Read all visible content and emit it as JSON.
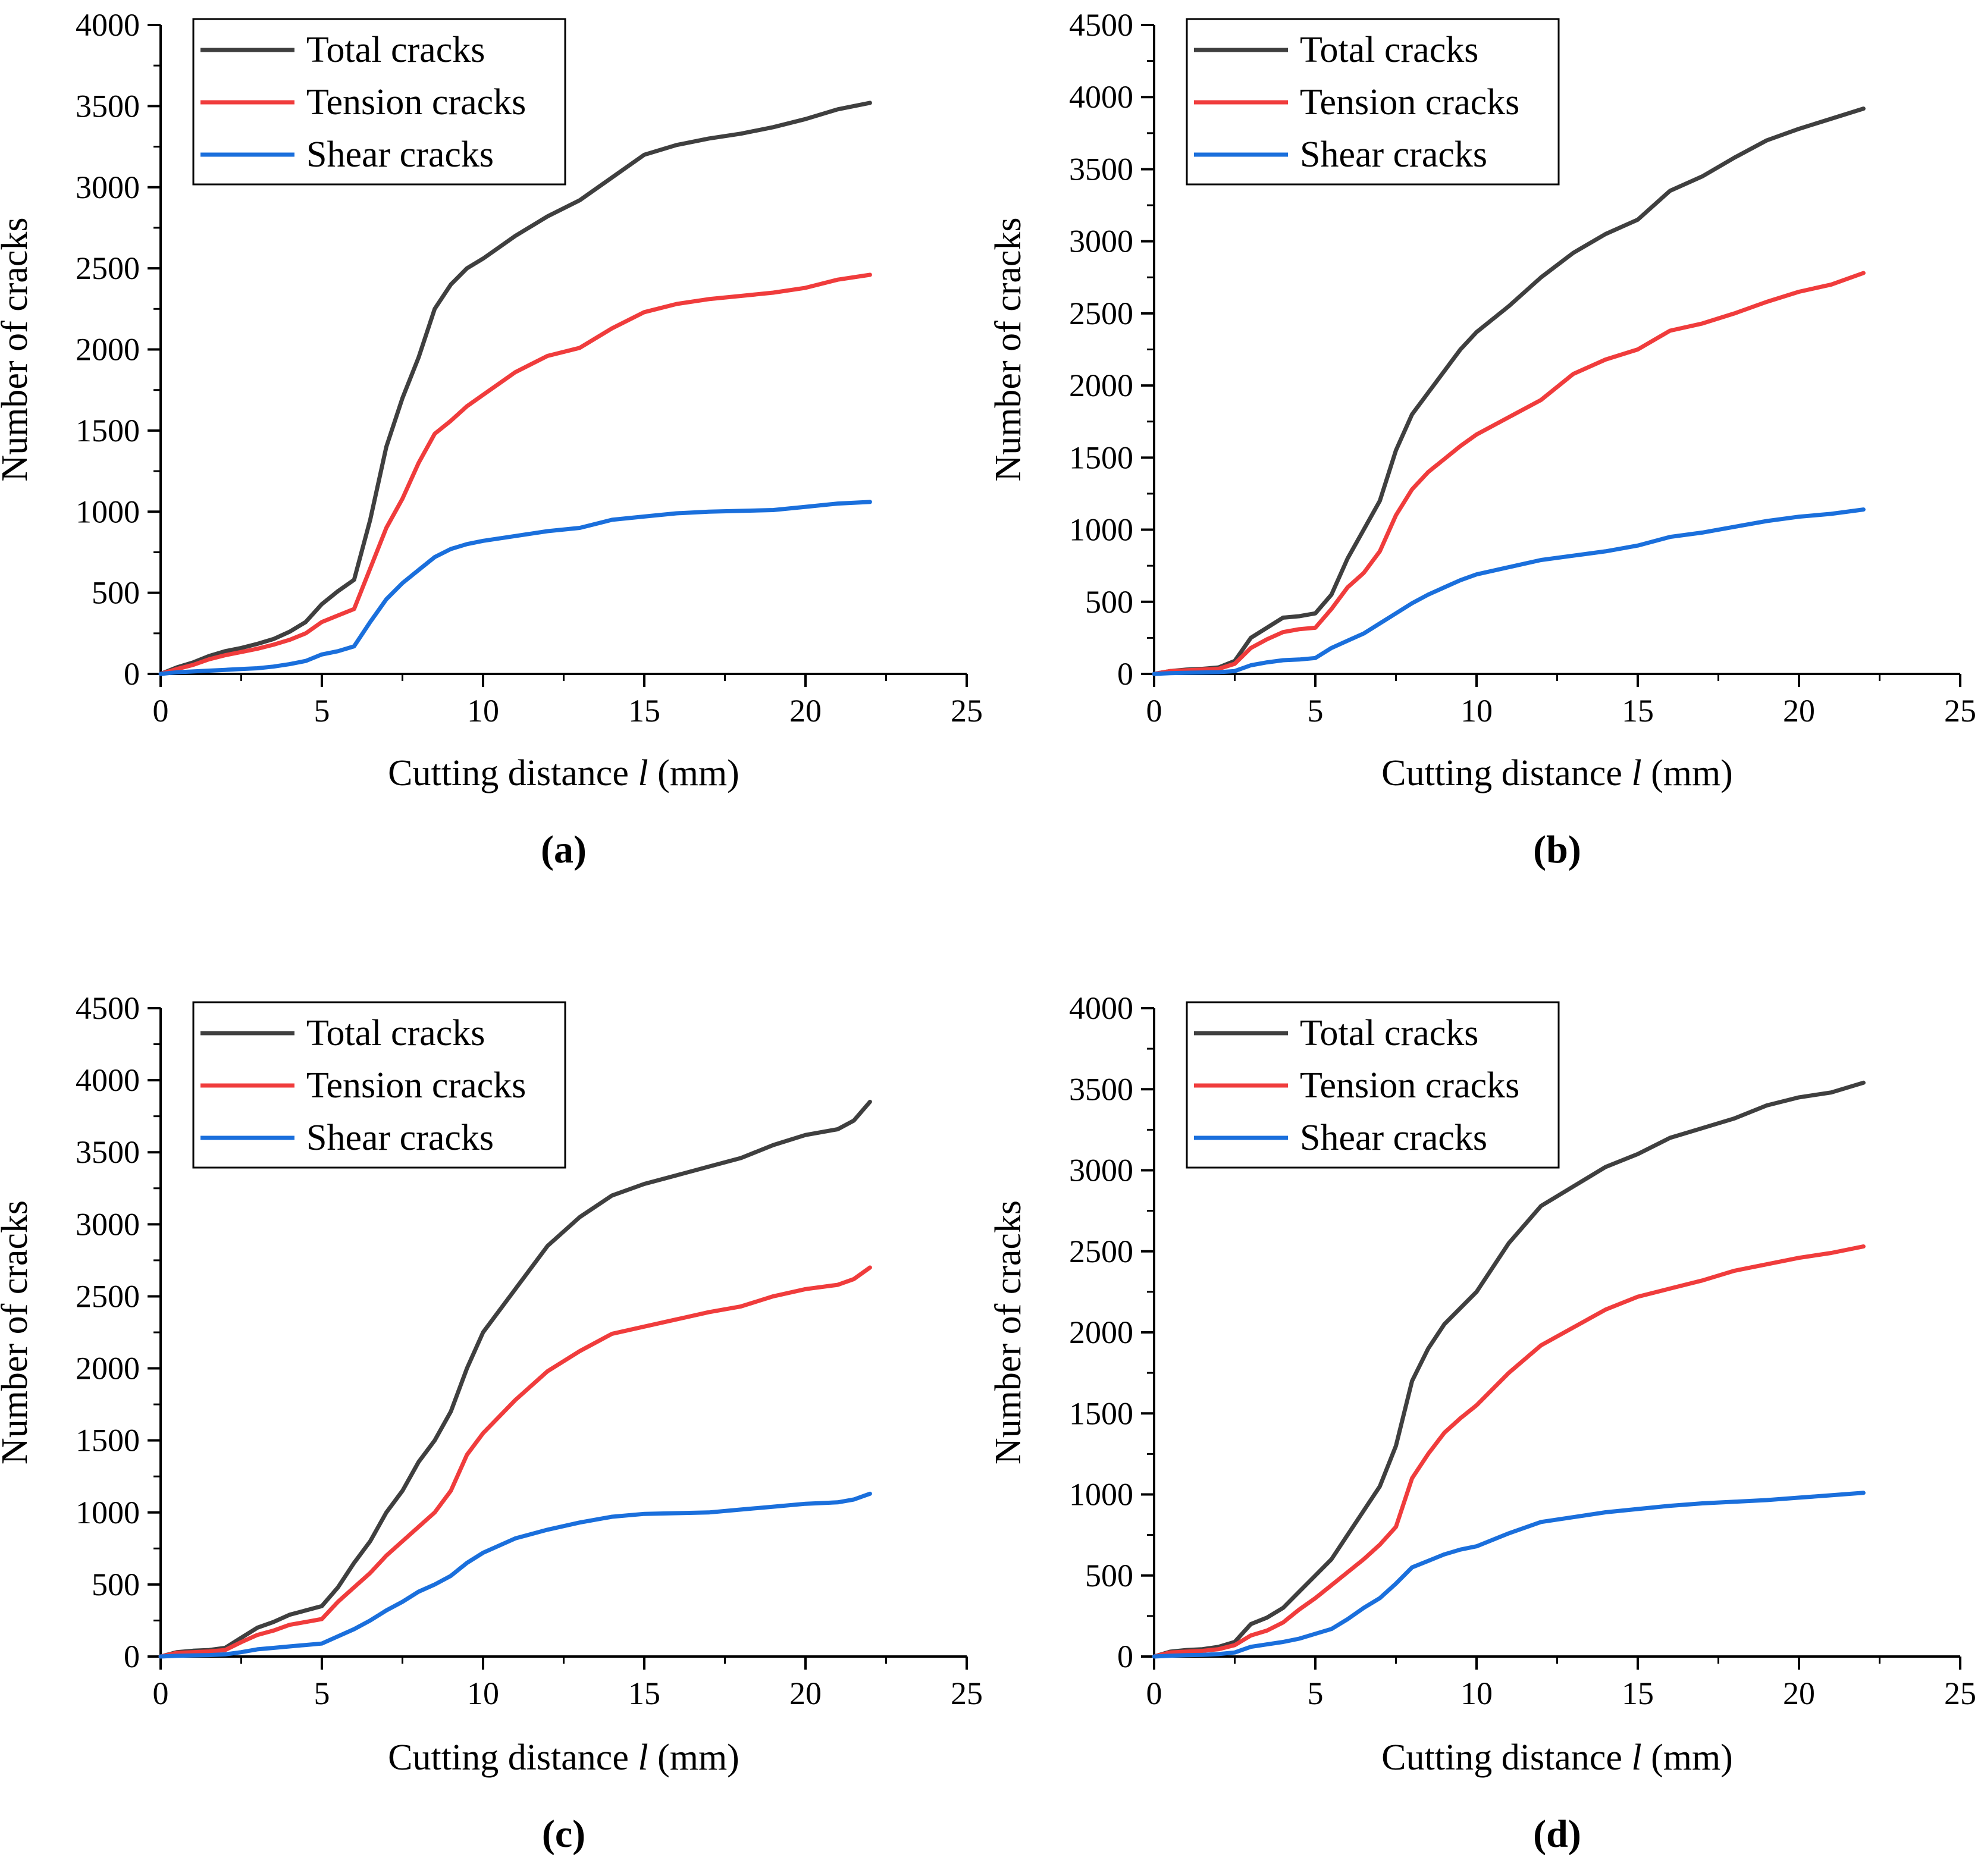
{
  "colors": {
    "total": "#3f3f3f",
    "tension": "#f03c3c",
    "shear": "#1a6fdc",
    "axis": "#000000"
  },
  "chart_data": [
    {
      "type": "line",
      "panel_label": "(a)",
      "xlabel_prefix": "Cutting distance ",
      "xlabel_var": "l",
      "xlabel_suffix": " (mm)",
      "ylabel": "Number of cracks",
      "xlim": [
        0,
        25
      ],
      "ylim": [
        0,
        4000
      ],
      "x_ticks": [
        0,
        5,
        10,
        15,
        20,
        25
      ],
      "y_ticks": [
        0,
        500,
        1000,
        1500,
        2000,
        2500,
        3000,
        3500,
        4000
      ],
      "legend_position": "top-left",
      "x": [
        0,
        0.5,
        1,
        1.5,
        2,
        2.5,
        3,
        3.5,
        4,
        4.5,
        5,
        5.5,
        6,
        6.5,
        7,
        7.5,
        8,
        8.5,
        9,
        9.5,
        10,
        11,
        12,
        13,
        14,
        15,
        16,
        17,
        18,
        19,
        20,
        21,
        22
      ],
      "series": [
        {
          "name": "Total cracks",
          "color_key": "total",
          "values": [
            0,
            40,
            70,
            110,
            140,
            160,
            185,
            215,
            260,
            320,
            430,
            510,
            580,
            950,
            1400,
            1700,
            1950,
            2250,
            2400,
            2500,
            2560,
            2700,
            2820,
            2920,
            3060,
            3200,
            3260,
            3300,
            3330,
            3370,
            3420,
            3480,
            3520
          ]
        },
        {
          "name": "Tension cracks",
          "color_key": "tension",
          "values": [
            0,
            30,
            55,
            90,
            115,
            135,
            155,
            180,
            210,
            250,
            320,
            360,
            400,
            650,
            900,
            1080,
            1300,
            1480,
            1560,
            1650,
            1720,
            1860,
            1960,
            2010,
            2130,
            2230,
            2280,
            2310,
            2330,
            2350,
            2380,
            2430,
            2460
          ]
        },
        {
          "name": "Shear cracks",
          "color_key": "shear",
          "values": [
            0,
            10,
            15,
            20,
            25,
            30,
            35,
            45,
            60,
            80,
            120,
            140,
            170,
            320,
            460,
            560,
            640,
            720,
            770,
            800,
            820,
            850,
            880,
            900,
            950,
            970,
            990,
            1000,
            1005,
            1010,
            1030,
            1050,
            1060
          ]
        }
      ]
    },
    {
      "type": "line",
      "panel_label": "(b)",
      "xlabel_prefix": "Cutting distance ",
      "xlabel_var": "l",
      "xlabel_suffix": " (mm)",
      "ylabel": "Number of cracks",
      "xlim": [
        0,
        25
      ],
      "ylim": [
        0,
        4500
      ],
      "x_ticks": [
        0,
        5,
        10,
        15,
        20,
        25
      ],
      "y_ticks": [
        0,
        500,
        1000,
        1500,
        2000,
        2500,
        3000,
        3500,
        4000,
        4500
      ],
      "legend_position": "top-left",
      "x": [
        0,
        0.5,
        1,
        1.5,
        2,
        2.5,
        3,
        3.5,
        4,
        4.5,
        5,
        5.5,
        6,
        6.5,
        7,
        7.5,
        8,
        8.5,
        9,
        9.5,
        10,
        11,
        12,
        13,
        14,
        15,
        16,
        17,
        18,
        19,
        20,
        21,
        22
      ],
      "series": [
        {
          "name": "Total cracks",
          "color_key": "total",
          "values": [
            0,
            20,
            30,
            35,
            45,
            90,
            250,
            320,
            390,
            400,
            420,
            550,
            800,
            1000,
            1200,
            1550,
            1800,
            1950,
            2100,
            2250,
            2370,
            2550,
            2750,
            2920,
            3050,
            3150,
            3350,
            3450,
            3580,
            3700,
            3780,
            3850,
            3920
          ]
        },
        {
          "name": "Tension cracks",
          "color_key": "tension",
          "values": [
            0,
            20,
            25,
            30,
            35,
            70,
            180,
            240,
            290,
            310,
            320,
            450,
            600,
            700,
            850,
            1100,
            1280,
            1400,
            1490,
            1580,
            1660,
            1780,
            1900,
            2080,
            2180,
            2250,
            2380,
            2430,
            2500,
            2580,
            2650,
            2700,
            2780
          ]
        },
        {
          "name": "Shear cracks",
          "color_key": "shear",
          "values": [
            0,
            5,
            8,
            10,
            12,
            20,
            60,
            80,
            95,
            100,
            110,
            180,
            230,
            280,
            350,
            420,
            490,
            550,
            600,
            650,
            690,
            740,
            790,
            820,
            850,
            890,
            950,
            980,
            1020,
            1060,
            1090,
            1110,
            1140
          ]
        }
      ]
    },
    {
      "type": "line",
      "panel_label": "(c)",
      "xlabel_prefix": "Cutting distance ",
      "xlabel_var": "l",
      "xlabel_suffix": " (mm)",
      "ylabel": "Number of cracks",
      "xlim": [
        0,
        25
      ],
      "ylim": [
        0,
        4500
      ],
      "x_ticks": [
        0,
        5,
        10,
        15,
        20,
        25
      ],
      "y_ticks": [
        0,
        500,
        1000,
        1500,
        2000,
        2500,
        3000,
        3500,
        4000,
        4500
      ],
      "legend_position": "top-left",
      "x": [
        0,
        0.5,
        1,
        1.5,
        2,
        2.5,
        3,
        3.5,
        4,
        4.5,
        5,
        5.5,
        6,
        6.5,
        7,
        7.5,
        8,
        8.5,
        9,
        9.5,
        10,
        11,
        12,
        13,
        14,
        15,
        16,
        17,
        18,
        19,
        20,
        21,
        21.5,
        22
      ],
      "series": [
        {
          "name": "Total cracks",
          "color_key": "total",
          "values": [
            0,
            30,
            40,
            45,
            60,
            130,
            200,
            240,
            290,
            320,
            350,
            480,
            650,
            800,
            1000,
            1150,
            1350,
            1500,
            1700,
            2000,
            2250,
            2550,
            2850,
            3050,
            3200,
            3280,
            3340,
            3400,
            3460,
            3550,
            3620,
            3660,
            3720,
            3850
          ]
        },
        {
          "name": "Tension cracks",
          "color_key": "tension",
          "values": [
            0,
            25,
            30,
            35,
            45,
            100,
            150,
            180,
            220,
            240,
            260,
            380,
            480,
            580,
            700,
            800,
            900,
            1000,
            1150,
            1400,
            1550,
            1780,
            1980,
            2120,
            2240,
            2290,
            2340,
            2390,
            2430,
            2500,
            2550,
            2580,
            2620,
            2700
          ]
        },
        {
          "name": "Shear cracks",
          "color_key": "shear",
          "values": [
            0,
            5,
            8,
            10,
            15,
            30,
            50,
            60,
            70,
            80,
            90,
            140,
            190,
            250,
            320,
            380,
            450,
            500,
            560,
            650,
            720,
            820,
            880,
            930,
            970,
            990,
            995,
            1000,
            1020,
            1040,
            1060,
            1070,
            1090,
            1130
          ]
        }
      ]
    },
    {
      "type": "line",
      "panel_label": "(d)",
      "xlabel_prefix": "Cutting distance ",
      "xlabel_var": "l",
      "xlabel_suffix": " (mm)",
      "ylabel": "Number of cracks",
      "xlim": [
        0,
        25
      ],
      "ylim": [
        0,
        4000
      ],
      "x_ticks": [
        0,
        5,
        10,
        15,
        20,
        25
      ],
      "y_ticks": [
        0,
        500,
        1000,
        1500,
        2000,
        2500,
        3000,
        3500,
        4000
      ],
      "legend_position": "top-left",
      "x": [
        0,
        0.5,
        1,
        1.5,
        2,
        2.5,
        3,
        3.5,
        4,
        4.5,
        5,
        5.5,
        6,
        6.5,
        7,
        7.5,
        8,
        8.5,
        9,
        9.5,
        10,
        11,
        12,
        13,
        14,
        15,
        16,
        17,
        18,
        19,
        20,
        21,
        22
      ],
      "series": [
        {
          "name": "Total cracks",
          "color_key": "total",
          "values": [
            0,
            30,
            40,
            45,
            60,
            90,
            200,
            240,
            300,
            400,
            500,
            600,
            750,
            900,
            1050,
            1300,
            1700,
            1900,
            2050,
            2150,
            2250,
            2550,
            2780,
            2900,
            3020,
            3100,
            3200,
            3260,
            3320,
            3400,
            3450,
            3480,
            3540
          ]
        },
        {
          "name": "Tension cracks",
          "color_key": "tension",
          "values": [
            0,
            25,
            30,
            35,
            45,
            70,
            130,
            160,
            210,
            290,
            360,
            440,
            520,
            600,
            690,
            800,
            1100,
            1250,
            1380,
            1470,
            1550,
            1750,
            1920,
            2030,
            2140,
            2220,
            2270,
            2320,
            2380,
            2420,
            2460,
            2490,
            2530
          ]
        },
        {
          "name": "Shear cracks",
          "color_key": "shear",
          "values": [
            0,
            5,
            8,
            10,
            15,
            25,
            60,
            75,
            90,
            110,
            140,
            170,
            230,
            300,
            360,
            450,
            550,
            590,
            630,
            660,
            680,
            760,
            830,
            860,
            890,
            910,
            930,
            945,
            955,
            965,
            980,
            995,
            1010
          ]
        }
      ]
    }
  ]
}
